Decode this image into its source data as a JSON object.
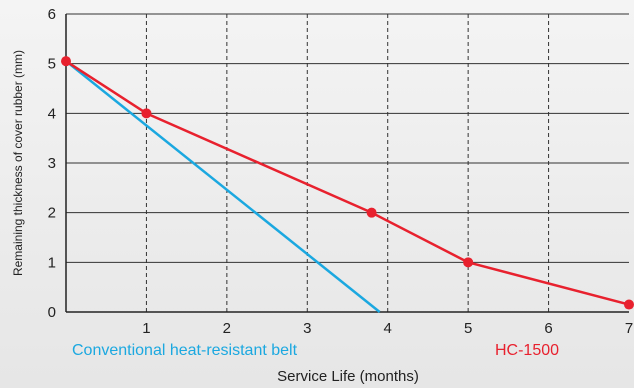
{
  "chart_data": {
    "type": "line",
    "xlabel": "Service Life (months)",
    "ylabel": "Remaining thickness of cover rubber (mm)",
    "xlim": [
      0,
      7
    ],
    "ylim": [
      0,
      6
    ],
    "x_ticks": [
      "1",
      "2",
      "3",
      "4",
      "5",
      "6",
      "7"
    ],
    "y_ticks": [
      "0",
      "1",
      "2",
      "3",
      "4",
      "5",
      "6"
    ],
    "grid": true,
    "legend": "below-plot",
    "series": [
      {
        "name": "Conventional heat-resistant belt",
        "color": "#1ba8e0",
        "markers": false,
        "points": [
          [
            0,
            5.05
          ],
          [
            3.9,
            0
          ]
        ]
      },
      {
        "name": "HC-1500",
        "color": "#e8212e",
        "markers": true,
        "points": [
          [
            0,
            5.05
          ],
          [
            1,
            4.0
          ],
          [
            3.8,
            2.0
          ],
          [
            5,
            1.0
          ],
          [
            7,
            0.15
          ]
        ]
      }
    ]
  }
}
